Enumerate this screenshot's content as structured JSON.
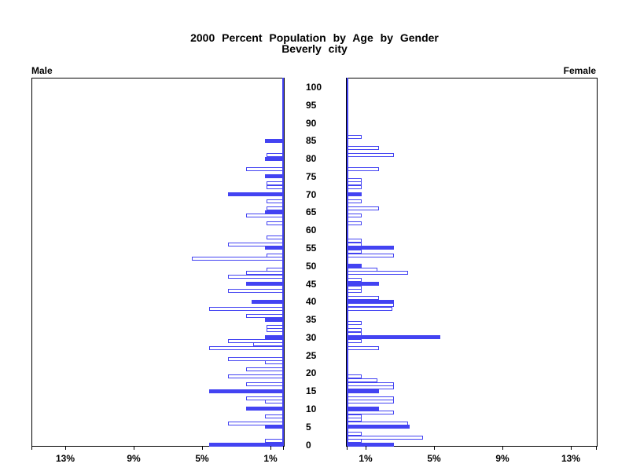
{
  "title": {
    "line1": "2000 Percent Population by Age by Gender",
    "line2": "Beverly city"
  },
  "panel_labels": {
    "left": "Male",
    "right": "Female"
  },
  "age_axis": {
    "tick_labels": [
      "0",
      "5",
      "10",
      "15",
      "20",
      "25",
      "30",
      "35",
      "40",
      "45",
      "50",
      "55",
      "60",
      "65",
      "70",
      "75",
      "80",
      "85",
      "90",
      "95",
      "100"
    ]
  },
  "pct_axis": {
    "male_tick_labels": [
      "1%",
      "5%",
      "9%",
      "13%"
    ],
    "female_tick_labels": [
      "1%",
      "5%",
      "9%",
      "13%"
    ]
  },
  "colors": {
    "bar_blue": "#4343f2",
    "axis_black": "#000000",
    "background": "#ffffff"
  },
  "chart_data": {
    "type": "bar",
    "title": "2000 Percent Population by Age by Gender",
    "subtitle": "Beverly city",
    "layout": "population pyramid; horizontal bars by single year of age 0-100; male bars grow leftward in left panel, female bars grow rightward in right panel; age ruler centered between panels",
    "x_unit": "percent of gender population",
    "x_ticks_pct": [
      1,
      5,
      9,
      13
    ],
    "x_max_pct": 14.8,
    "age_min": 0,
    "age_max": 100,
    "age_tick_step": 5,
    "grid": "off",
    "bar_format": "bars entries are [age_years, percent, fill] with fill s = solid blue (ages divisible by 5) and o = white with blue outline (all other ages); missing ages have zero population",
    "male_bars": [
      [
        85,
        1.1,
        "s"
      ],
      [
        81,
        1.0,
        "o"
      ],
      [
        80,
        1.1,
        "s"
      ],
      [
        77,
        2.2,
        "o"
      ],
      [
        75,
        1.1,
        "s"
      ],
      [
        73,
        1.0,
        "o"
      ],
      [
        72,
        1.0,
        "o"
      ],
      [
        70,
        3.3,
        "s"
      ],
      [
        68,
        1.0,
        "o"
      ],
      [
        66,
        1.0,
        "o"
      ],
      [
        65,
        1.1,
        "s"
      ],
      [
        64,
        2.2,
        "o"
      ],
      [
        62,
        1.0,
        "o"
      ],
      [
        58,
        1.0,
        "o"
      ],
      [
        56,
        3.3,
        "o"
      ],
      [
        55,
        1.1,
        "s"
      ],
      [
        53,
        1.0,
        "o"
      ],
      [
        52,
        5.4,
        "o"
      ],
      [
        49,
        1.0,
        "o"
      ],
      [
        48,
        2.2,
        "o"
      ],
      [
        47,
        3.3,
        "o"
      ],
      [
        45,
        2.2,
        "s"
      ],
      [
        43,
        3.3,
        "o"
      ],
      [
        40,
        1.9,
        "s"
      ],
      [
        38,
        4.4,
        "o"
      ],
      [
        36,
        2.2,
        "o"
      ],
      [
        35,
        1.1,
        "s"
      ],
      [
        33,
        1.0,
        "o"
      ],
      [
        32,
        1.0,
        "o"
      ],
      [
        30,
        1.1,
        "s"
      ],
      [
        29,
        3.3,
        "o"
      ],
      [
        28,
        1.8,
        "o"
      ],
      [
        27,
        4.4,
        "o"
      ],
      [
        24,
        3.3,
        "o"
      ],
      [
        23,
        1.1,
        "o"
      ],
      [
        21,
        2.2,
        "o"
      ],
      [
        19,
        3.3,
        "o"
      ],
      [
        17,
        2.2,
        "o"
      ],
      [
        15,
        4.4,
        "s"
      ],
      [
        13,
        2.2,
        "o"
      ],
      [
        12,
        1.1,
        "o"
      ],
      [
        10,
        2.2,
        "s"
      ],
      [
        8,
        1.1,
        "o"
      ],
      [
        6,
        3.3,
        "o"
      ],
      [
        5,
        1.1,
        "s"
      ],
      [
        1,
        1.1,
        "o"
      ],
      [
        0,
        4.4,
        "s"
      ]
    ],
    "female_bars": [
      [
        86,
        0.9,
        "o"
      ],
      [
        83,
        1.9,
        "o"
      ],
      [
        81,
        2.8,
        "o"
      ],
      [
        77,
        1.9,
        "o"
      ],
      [
        74,
        0.9,
        "o"
      ],
      [
        73,
        0.9,
        "o"
      ],
      [
        72,
        0.9,
        "o"
      ],
      [
        70,
        0.9,
        "s"
      ],
      [
        68,
        0.9,
        "o"
      ],
      [
        66,
        1.9,
        "o"
      ],
      [
        64,
        0.9,
        "o"
      ],
      [
        62,
        0.9,
        "o"
      ],
      [
        57,
        0.9,
        "o"
      ],
      [
        56,
        0.9,
        "o"
      ],
      [
        55,
        2.8,
        "s"
      ],
      [
        54,
        0.9,
        "o"
      ],
      [
        53,
        2.8,
        "o"
      ],
      [
        50,
        0.9,
        "s"
      ],
      [
        49,
        1.8,
        "o"
      ],
      [
        48,
        3.6,
        "o"
      ],
      [
        46,
        0.9,
        "o"
      ],
      [
        45,
        1.9,
        "s"
      ],
      [
        44,
        0.9,
        "o"
      ],
      [
        43,
        0.9,
        "o"
      ],
      [
        41,
        1.9,
        "o"
      ],
      [
        40,
        2.8,
        "s"
      ],
      [
        39,
        2.8,
        "o"
      ],
      [
        38,
        2.7,
        "o"
      ],
      [
        34,
        0.9,
        "o"
      ],
      [
        32,
        0.9,
        "o"
      ],
      [
        31,
        0.9,
        "o"
      ],
      [
        30,
        5.5,
        "s"
      ],
      [
        29,
        0.9,
        "o"
      ],
      [
        27,
        1.9,
        "o"
      ],
      [
        19,
        0.9,
        "o"
      ],
      [
        18,
        1.8,
        "o"
      ],
      [
        17,
        2.8,
        "o"
      ],
      [
        16,
        2.8,
        "o"
      ],
      [
        15,
        1.9,
        "s"
      ],
      [
        13,
        2.8,
        "o"
      ],
      [
        12,
        2.8,
        "o"
      ],
      [
        10,
        1.9,
        "s"
      ],
      [
        9,
        2.8,
        "o"
      ],
      [
        8,
        0.9,
        "o"
      ],
      [
        7,
        0.9,
        "o"
      ],
      [
        6,
        3.6,
        "o"
      ],
      [
        5,
        3.7,
        "s"
      ],
      [
        3,
        0.9,
        "o"
      ],
      [
        2,
        4.5,
        "o"
      ],
      [
        1,
        0.9,
        "o"
      ],
      [
        0,
        2.8,
        "s"
      ]
    ]
  }
}
